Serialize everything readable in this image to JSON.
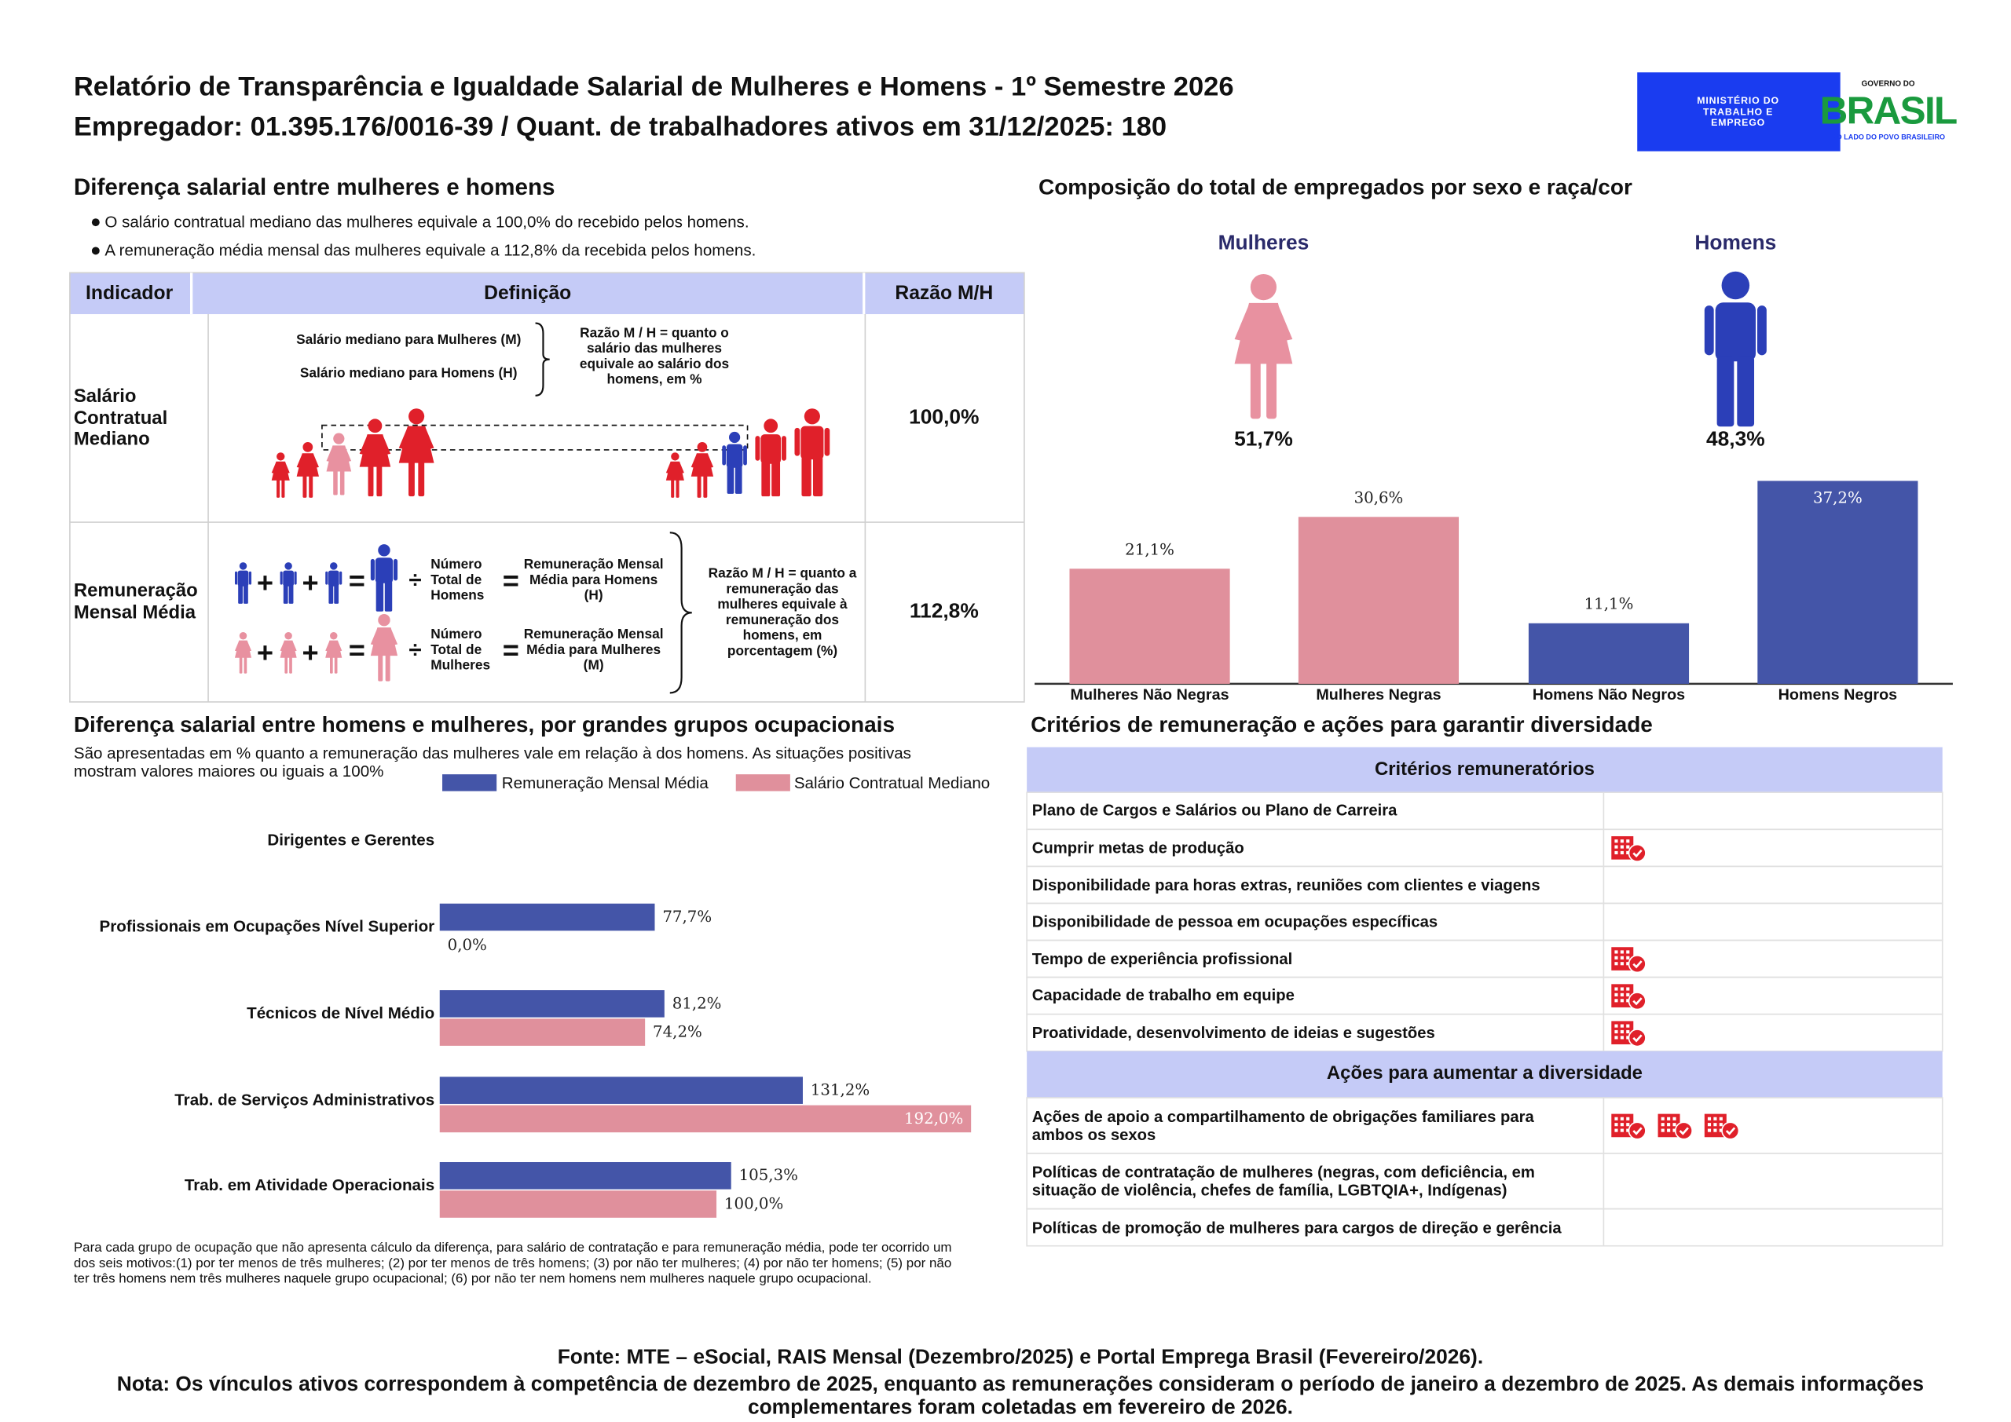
{
  "header": {
    "title": "Relatório de Transparência e Igualdade Salarial de Mulheres e Homens - 1º Semestre 2026",
    "subtitle": "Empregador: 01.395.176/0016-39 / Quant. de trabalhadores ativos em 31/12/2025: 180",
    "ministry_logo": "MINISTÉRIO DO TRABALHO E EMPREGO",
    "gov_logo": {
      "top": "GOVERNO DO",
      "name": "BRASIL",
      "tagline": "DO LADO DO POVO BRASILEIRO"
    }
  },
  "salary_gap": {
    "title": "Diferença salarial entre mulheres e homens",
    "bullets": [
      "O salário contratual mediano das mulheres equivale a 100,0% do recebido pelos homens.",
      "A remuneração média mensal das mulheres equivale a 112,8% da recebida pelos homens."
    ],
    "symbols": {
      "plus": "+",
      "equals": "=",
      "divide": "÷"
    },
    "table": {
      "columns": [
        "Indicador",
        "Definição",
        "Razão M/H"
      ],
      "rows": [
        {
          "indicator": "Salário Contratual Mediano",
          "labels": [
            "Salário mediano para Mulheres (M)",
            "Salário mediano para Homens (H)"
          ],
          "note": "Razão M / H = quanto o salário das mulheres equivale ao salário dos homens, em %",
          "ratio": "100,0%"
        },
        {
          "indicator": "Remuneração Mensal Média",
          "labels": [
            "Número Total de Homens",
            "Remuneração Mensal Média para Homens (H)",
            "Número Total de Mulheres",
            "Remuneração Mensal Média para Mulheres (M)"
          ],
          "note": "Razão M / H = quanto a remuneração das mulheres equivale à remuneração dos homens, em porcentagem (%)",
          "ratio": "112,8%"
        }
      ]
    }
  },
  "composition": {
    "title": "Composição do total de empregados por sexo e raça/cor",
    "groups": [
      {
        "name": "Mulheres",
        "share": "51,7%"
      },
      {
        "name": "Homens",
        "share": "48,3%"
      }
    ]
  },
  "chart_data": [
    {
      "type": "bar",
      "categories": [
        "Mulheres Não Negras",
        "Mulheres Negras",
        "Homens Não Negros",
        "Homens Negros"
      ],
      "values": [
        21.1,
        30.6,
        11.1,
        37.2
      ],
      "value_labels": [
        "21,1%",
        "30,6%",
        "11,1%",
        "37,2%"
      ],
      "colors": [
        "#e0909c",
        "#e0909c",
        "#4455a8",
        "#4455a8"
      ]
    },
    {
      "type": "hbar",
      "title": "Diferença salarial entre homens e mulheres, por grandes grupos ocupacionais",
      "subtitle": "São apresentadas em % quanto a remuneração das mulheres vale em relação à dos homens. As situações positivas mostram valores maiores ou iguais a 100%",
      "categories": [
        "Dirigentes e Gerentes",
        "Profissionais em Ocupações Nível Superior",
        "Técnicos de Nível Médio",
        "Trab. de Serviços Administrativos",
        "Trab. em Atividade Operacionais"
      ],
      "series": [
        {
          "name": "Remuneração Mensal Média",
          "color": "#4455a8",
          "values": [
            null,
            77.7,
            81.2,
            131.2,
            105.3
          ],
          "value_labels": [
            null,
            "77,7%",
            "81,2%",
            "131,2%",
            "105,3%"
          ]
        },
        {
          "name": "Salário Contratual Mediano",
          "color": "#e0909c",
          "values": [
            null,
            0.0,
            74.2,
            192.0,
            100.0
          ],
          "value_labels": [
            null,
            "0,0%",
            "74,2%",
            "192,0%",
            "100,0%"
          ]
        }
      ],
      "note": "Para cada grupo de ocupação que não apresenta cálculo da diferença, para salário de contratação e para remuneração média, pode ter ocorrido um dos seis motivos:(1) por ter menos de três mulheres; (2) por ter menos de três homens; (3) por não ter mulheres; (4) por não ter homens; (5) por não ter três homens nem três mulheres naquele grupo ocupacional; (6) por não ter nem homens nem mulheres naquele grupo ocupacional."
    }
  ],
  "criteria": {
    "title": "Critérios de remuneração e ações para garantir diversidade",
    "sections": [
      {
        "heading": "Critérios remuneratórios",
        "rows": [
          {
            "label": "Plano de Cargos e Salários ou Plano de Carreira",
            "icons": 0
          },
          {
            "label": "Cumprir metas de produção",
            "icons": 1
          },
          {
            "label": "Disponibilidade para horas extras, reuniões com clientes e viagens",
            "icons": 0
          },
          {
            "label": "Disponibilidade de pessoa em ocupações específicas",
            "icons": 0
          },
          {
            "label": "Tempo de experiência profissional",
            "icons": 1
          },
          {
            "label": "Capacidade de trabalho em equipe",
            "icons": 1
          },
          {
            "label": "Proatividade, desenvolvimento de ideias e sugestões",
            "icons": 1
          }
        ]
      },
      {
        "heading": "Ações para aumentar a diversidade",
        "rows": [
          {
            "label": "Ações de apoio a compartilhamento de obrigações familiares para ambos os sexos",
            "icons": 3
          },
          {
            "label": "Políticas de contratação de mulheres (negras, com deficiência, em situação de violência, chefes de família, LGBTQIA+, Indígenas)",
            "icons": 0
          },
          {
            "label": "Políticas de promoção de mulheres para cargos de direção e gerência",
            "icons": 0
          }
        ]
      }
    ]
  },
  "footer": {
    "source": "Fonte: MTE – eSocial, RAIS Mensal (Dezembro/2025) e Portal Emprega Brasil (Fevereiro/2026).",
    "note": "Nota: Os vínculos ativos correspondem à competência de dezembro de 2025, enquanto as remunerações consideram o período de janeiro a dezembro de 2025. As demais informações complementares foram coletadas em fevereiro de 2026."
  }
}
